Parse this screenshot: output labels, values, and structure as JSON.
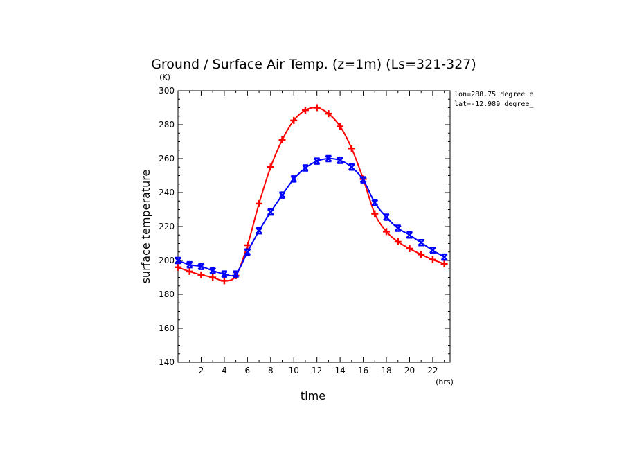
{
  "chart_data": {
    "type": "line",
    "title": "Ground / Surface Air Temp. (z=1m) (Ls=321-327)",
    "xlabel": "time",
    "xunit": "(hrs)",
    "ylabel": "surface temperature",
    "yunit": "(K)",
    "annotations": [
      "lon=288.75 degree_e",
      "lat=-12.989 degree_"
    ],
    "xlim": [
      0,
      23.5
    ],
    "ylim": [
      140,
      300
    ],
    "xticks": [
      2,
      4,
      6,
      8,
      10,
      12,
      14,
      16,
      18,
      20,
      22
    ],
    "yticks": [
      140,
      160,
      180,
      200,
      220,
      240,
      260,
      280,
      300
    ],
    "grid": false,
    "x": [
      0.0,
      1.0,
      2.0,
      3.0,
      4.0,
      5.0,
      6.0,
      7.0,
      8.0,
      9.0,
      10.0,
      11.0,
      12.0,
      13.0,
      14.0,
      15.0,
      16.0,
      17.0,
      18.0,
      19.0,
      20.0,
      21.0,
      22.0,
      23.0
    ],
    "series": [
      {
        "color": "#ff0000",
        "marker": "plus",
        "values": [
          196,
          193.5,
          191.5,
          190,
          188,
          191,
          209,
          233.5,
          255,
          271,
          282.5,
          288.5,
          290,
          286.5,
          279,
          266,
          248,
          227.5,
          217,
          211,
          207,
          203.5,
          200.5,
          198
        ]
      },
      {
        "color": "#0000ff",
        "marker": "x",
        "values": [
          200,
          197.5,
          196.5,
          194,
          192,
          192,
          205,
          217.5,
          228.5,
          238.5,
          248,
          254.5,
          258.5,
          260,
          259,
          255,
          247.5,
          234,
          225.5,
          219,
          215,
          210.5,
          206,
          202
        ]
      }
    ]
  }
}
